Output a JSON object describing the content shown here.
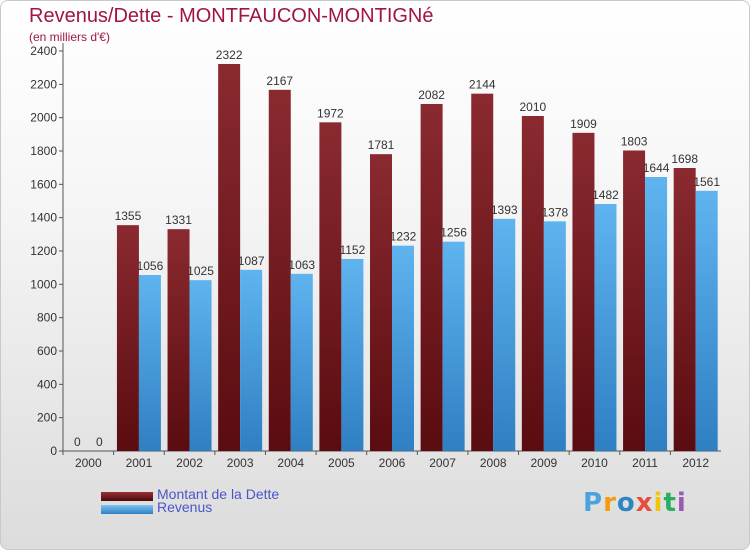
{
  "title": "Revenus/Dette - MONTFAUCON-MONTIGNé",
  "subtitle": "(en milliers d'€)",
  "logo": {
    "text": "Proxiti",
    "colors": [
      "#4aa3df",
      "#f39c12",
      "#2e86c1",
      "#e74c3c",
      "#f1c40f",
      "#27ae60",
      "#9b59b6"
    ]
  },
  "chart_data": {
    "type": "bar",
    "categories": [
      "2000",
      "2001",
      "2002",
      "2003",
      "2004",
      "2005",
      "2006",
      "2007",
      "2008",
      "2009",
      "2010",
      "2011",
      "2012"
    ],
    "series": [
      {
        "name": "Montant de la Dette",
        "color": "#7a1e22",
        "values": [
          0,
          1355,
          1331,
          2322,
          2167,
          1972,
          1781,
          2082,
          2144,
          2010,
          1909,
          1803,
          1698
        ]
      },
      {
        "name": "Revenus",
        "color": "#4aa3e6",
        "values": [
          0,
          1056,
          1025,
          1087,
          1063,
          1152,
          1232,
          1256,
          1393,
          1378,
          1482,
          1644,
          1561
        ]
      }
    ],
    "yticks": [
      0,
      200,
      400,
      600,
      800,
      1000,
      1200,
      1400,
      1600,
      1800,
      2000,
      2200,
      2400
    ],
    "ylim": [
      0,
      2400
    ],
    "legend": "bottom-left",
    "grid": false
  }
}
